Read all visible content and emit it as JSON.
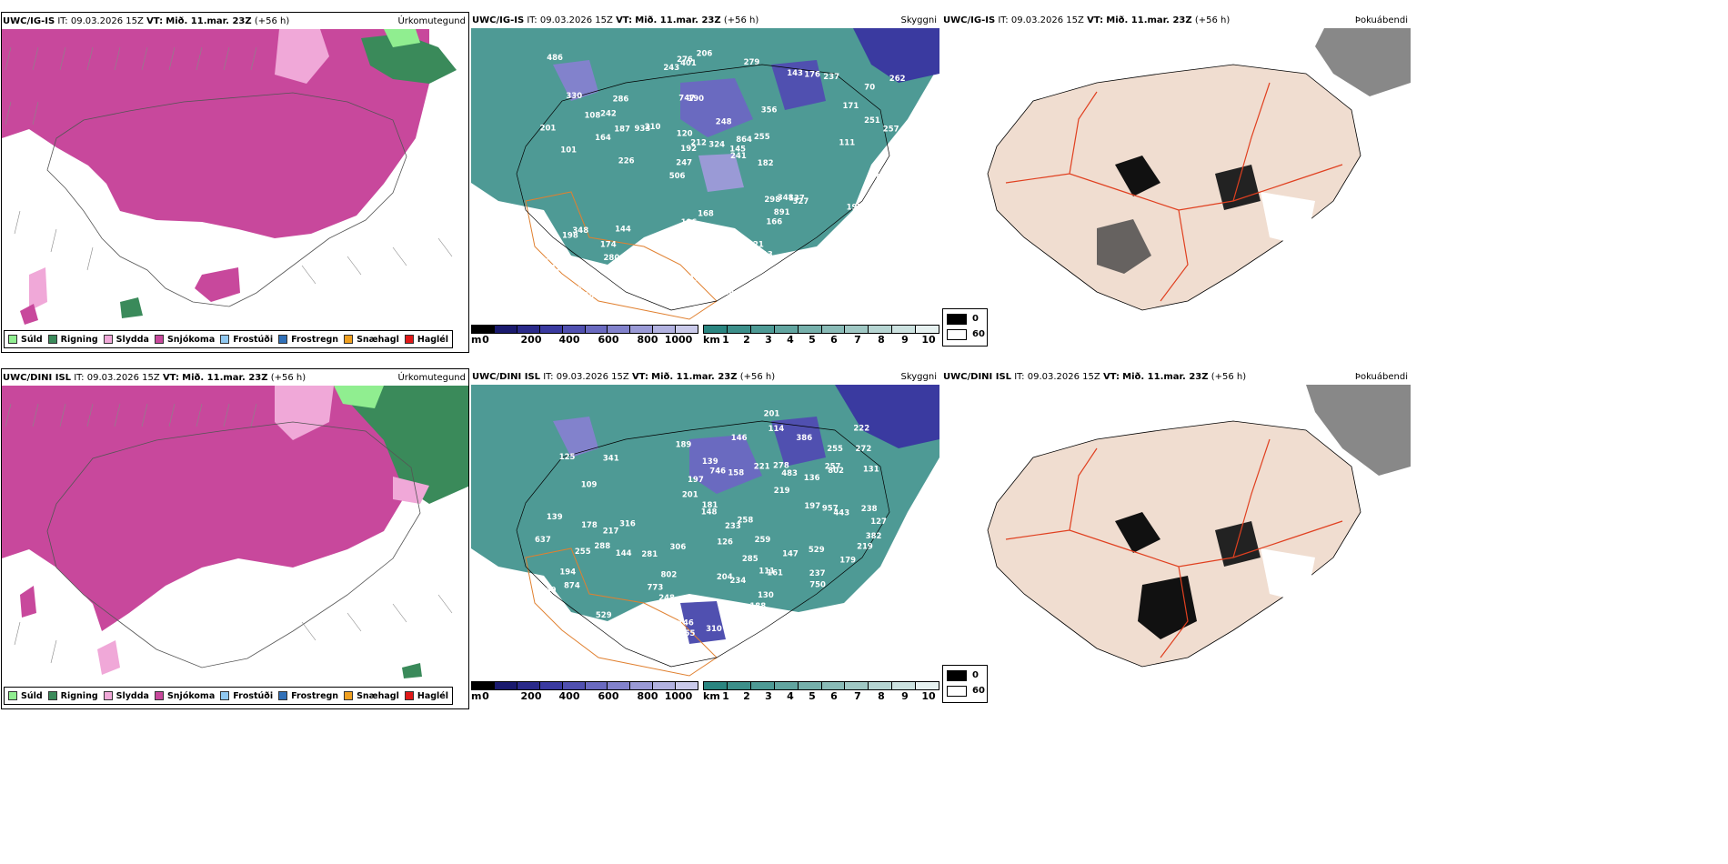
{
  "rows": [
    {
      "model": "UWC/IG-IS",
      "it_label": "IT:",
      "it_value": "09.03.2026 15Z",
      "vt_label": "VT:",
      "vt_value": "Mið. 11.mar. 23Z",
      "lead": "(+56 h)",
      "labels": [
        "286",
        "101",
        "70",
        "506",
        "356",
        "206",
        "747",
        "248",
        "348",
        "210",
        "212",
        "280",
        "190",
        "864",
        "327",
        "330",
        "401",
        "193",
        "298",
        "251",
        "247",
        "541",
        "192",
        "286",
        "143",
        "144",
        "121",
        "126",
        "137",
        "184",
        "933",
        "164",
        "166",
        "178",
        "257",
        "145",
        "259",
        "311",
        "241",
        "198",
        "171",
        "262",
        "891",
        "213",
        "174",
        "198",
        "320",
        "957",
        "237",
        "206",
        "226",
        "201",
        "242",
        "176",
        "255",
        "279",
        "243",
        "212",
        "221",
        "196",
        "168",
        "348",
        "187",
        "517",
        "486",
        "108",
        "109",
        "120",
        "207",
        "324",
        "152",
        "182",
        "197",
        "147",
        "111",
        "168",
        "278",
        "62",
        "321",
        "276",
        "354",
        "255"
      ]
    },
    {
      "model": "UWC/DINI ISL",
      "it_label": "IT:",
      "it_value": "09.03.2026 15Z",
      "vt_label": "VT:",
      "vt_value": "Mið. 11.mar. 23Z",
      "lead": "(+56 h)",
      "labels": [
        "84",
        "288",
        "111",
        "125",
        "201",
        "109",
        "529",
        "281",
        "136",
        "746",
        "483",
        "232",
        "248",
        "189",
        "259",
        "874",
        "529",
        "233",
        "139",
        "269",
        "222",
        "158",
        "957",
        "263",
        "382",
        "178",
        "144",
        "126",
        "148",
        "272",
        "161",
        "255",
        "773",
        "278",
        "197",
        "179",
        "219",
        "282",
        "255",
        "292",
        "802",
        "234",
        "153",
        "201",
        "306",
        "217",
        "131",
        "114",
        "221",
        "204",
        "147",
        "238",
        "237",
        "443",
        "201",
        "637",
        "255",
        "181",
        "285",
        "197",
        "146",
        "257",
        "341",
        "146",
        "249",
        "194",
        "316",
        "258",
        "386",
        "802",
        "750",
        "310",
        "188",
        "766",
        "219",
        "127",
        "139",
        "130"
      ]
    }
  ],
  "fields": {
    "precip": "Úrkomutegund",
    "cloud": "Skyggni",
    "fog": "Þokuábendi"
  },
  "precip_legend": [
    {
      "label": "Súld",
      "color": "#90ee90"
    },
    {
      "label": "Rigning",
      "color": "#3a8a5a"
    },
    {
      "label": "Slydda",
      "color": "#f0a8d8"
    },
    {
      "label": "Snjókoma",
      "color": "#c8489c"
    },
    {
      "label": "Frostúði",
      "color": "#90c8f0"
    },
    {
      "label": "Frostregn",
      "color": "#3070b8"
    },
    {
      "label": "Snæhagl",
      "color": "#f0a020"
    },
    {
      "label": "Haglél",
      "color": "#e01818"
    }
  ],
  "cloudbase_bar": {
    "unit": "m",
    "ticks": [
      "0",
      "200",
      "400",
      "600",
      "800",
      "1000"
    ],
    "colors": [
      "#000000",
      "#1a1a6e",
      "#2a2a8a",
      "#3a3aa0",
      "#5050b0",
      "#6a6ac0",
      "#8282cc",
      "#9a9ad6",
      "#b2b2e0",
      "#cacaea"
    ]
  },
  "visibility_bar": {
    "unit": "km",
    "ticks": [
      "1",
      "2",
      "3",
      "4",
      "5",
      "6",
      "7",
      "8",
      "9",
      "10"
    ],
    "colors": [
      "#2a8580",
      "#3c8f8a",
      "#4e9a95",
      "#62a5a0",
      "#76b0ab",
      "#8abbb7",
      "#a0c8c4",
      "#b6d5d2",
      "#cce2e0",
      "#e6f1f0"
    ]
  },
  "fog_legend": [
    {
      "label": "0",
      "color": "#000000"
    },
    {
      "label": "60",
      "color": "#ffffff"
    }
  ]
}
